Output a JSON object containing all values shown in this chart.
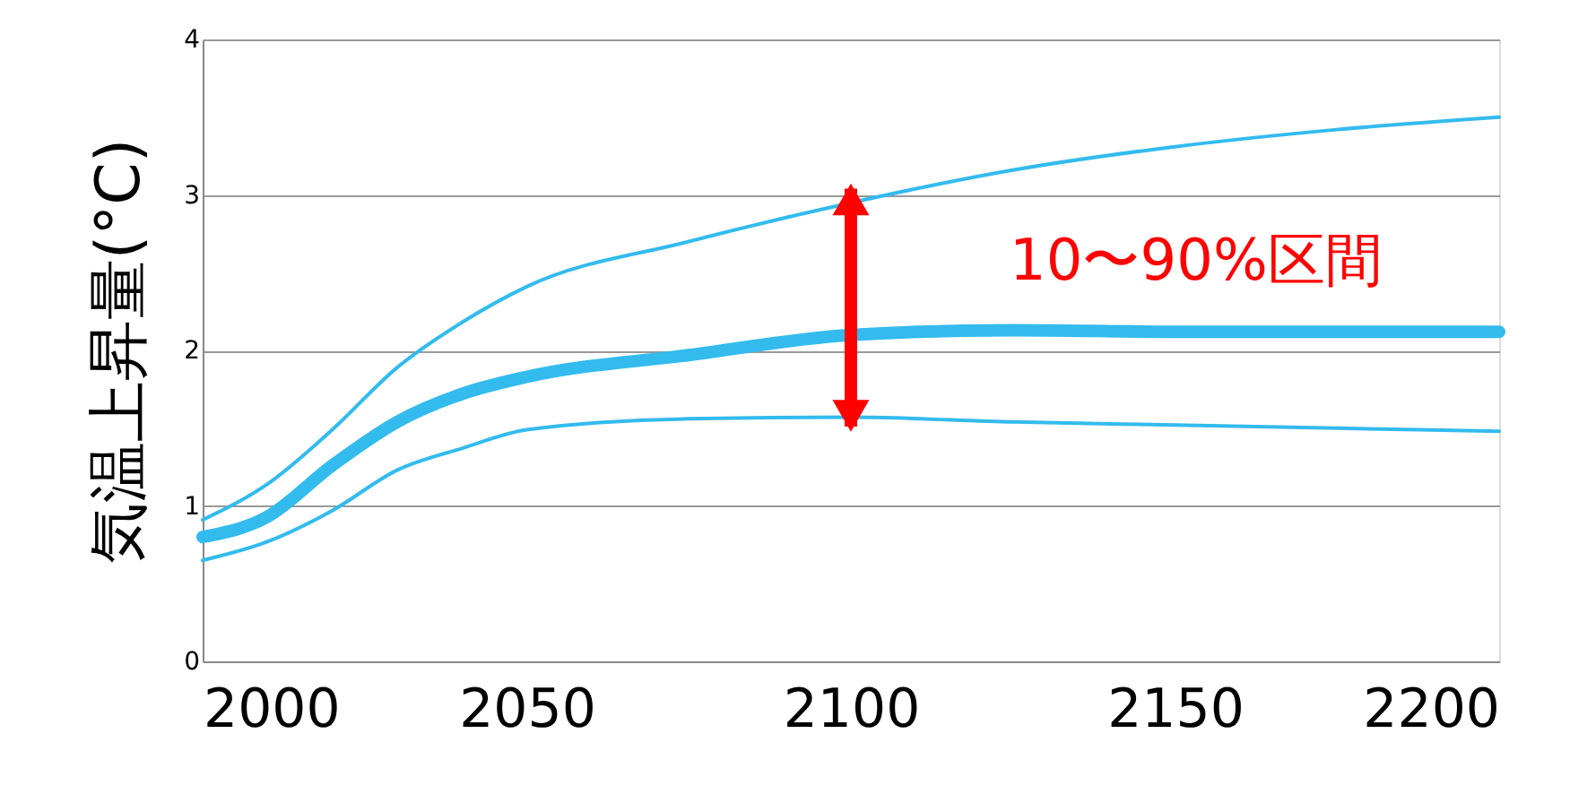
{
  "chart_data": {
    "type": "line",
    "ylabel": "気温上昇量(°C)",
    "x": [
      2000,
      2010,
      2020,
      2030,
      2040,
      2050,
      2075,
      2100,
      2125,
      2150,
      2175,
      2200
    ],
    "series": [
      {
        "color": "#33bbee",
        "values": [
          0.91,
          1.14,
          1.49,
          1.89,
          2.18,
          2.41,
          2.7,
          2.95,
          3.16,
          3.31,
          3.42,
          3.5
        ]
      },
      {
        "color": "#33bbee",
        "values": [
          0.8,
          0.93,
          1.26,
          1.54,
          1.72,
          1.83,
          1.97,
          2.1,
          2.13,
          2.12,
          2.12,
          2.12
        ],
        "errors": [
          null,
          null,
          null,
          null,
          null,
          null,
          null,
          [
            1.51,
            3.04
          ],
          null,
          null,
          null,
          null
        ]
      },
      {
        "color": "#33bbee",
        "values": [
          0.65,
          0.77,
          0.97,
          1.23,
          1.37,
          1.49,
          1.56,
          1.57,
          1.54,
          1.52,
          1.5,
          1.48
        ]
      }
    ],
    "xlim": [
      2000,
      2200
    ],
    "xticks": [
      2000,
      2050,
      2100,
      2150,
      2200
    ],
    "ylim": [
      0,
      4
    ],
    "yticks": [
      0,
      1,
      2,
      3,
      4
    ],
    "grid": "y",
    "marker": "none",
    "line_style": "solid",
    "annotations": [
      "10〜90%区間"
    ]
  }
}
